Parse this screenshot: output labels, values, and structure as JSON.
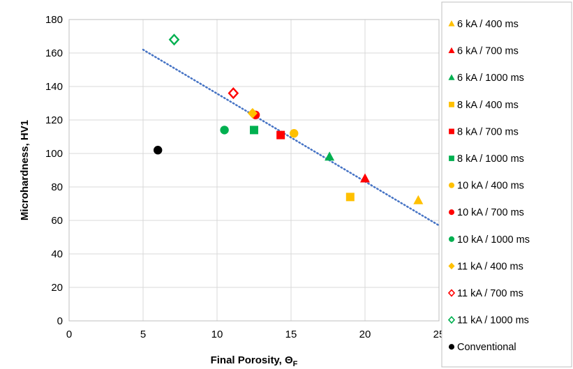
{
  "chart_data": {
    "type": "scatter",
    "title": "",
    "xlabel": "Final Porosity, Θ",
    "xlabel_sub": "F",
    "ylabel": "Microhardness, HV1",
    "xlim": [
      0,
      25
    ],
    "ylim": [
      0,
      180
    ],
    "x_ticks": [
      0,
      5,
      10,
      15,
      20,
      25
    ],
    "y_ticks": [
      0,
      20,
      40,
      60,
      80,
      100,
      120,
      140,
      160,
      180
    ],
    "grid": "vertical and horizontal major gridlines",
    "legend_placement": "right",
    "colors": {
      "yellow": "#FFC000",
      "red": "#FF0000",
      "green": "#00B050",
      "black": "#000000",
      "trend": "#4472C4"
    },
    "series": [
      {
        "name": "6 kA / 400 ms",
        "marker": "triangle",
        "color": "#FFC000",
        "points": [
          [
            23.6,
            72
          ]
        ]
      },
      {
        "name": "6 kA / 700 ms",
        "marker": "triangle",
        "color": "#FF0000",
        "points": [
          [
            20.0,
            85
          ]
        ]
      },
      {
        "name": "6 kA / 1000 ms",
        "marker": "triangle",
        "color": "#00B050",
        "points": [
          [
            17.6,
            98
          ]
        ]
      },
      {
        "name": "8 kA / 400 ms",
        "marker": "square",
        "color": "#FFC000",
        "points": [
          [
            19.0,
            74
          ]
        ]
      },
      {
        "name": "8 kA / 700 ms",
        "marker": "square",
        "color": "#FF0000",
        "points": [
          [
            14.3,
            111
          ]
        ]
      },
      {
        "name": "8 kA / 1000 ms",
        "marker": "square",
        "color": "#00B050",
        "points": [
          [
            12.5,
            114
          ]
        ]
      },
      {
        "name": "10 kA / 400 ms",
        "marker": "circle",
        "color": "#FFC000",
        "points": [
          [
            15.2,
            112
          ]
        ]
      },
      {
        "name": "10 kA / 700 ms",
        "marker": "circle",
        "color": "#FF0000",
        "points": [
          [
            12.6,
            123
          ]
        ]
      },
      {
        "name": "10 kA / 1000 ms",
        "marker": "circle",
        "color": "#00B050",
        "points": [
          [
            10.5,
            114
          ]
        ]
      },
      {
        "name": "11 kA / 400 ms",
        "marker": "diamond",
        "color": "#FFC000",
        "points": [
          [
            12.4,
            124
          ]
        ]
      },
      {
        "name": "11 kA / 700 ms",
        "marker": "diamond-open",
        "color": "#FF0000",
        "points": [
          [
            11.1,
            136
          ]
        ]
      },
      {
        "name": "11 kA / 1000 ms",
        "marker": "diamond-open",
        "color": "#00B050",
        "points": [
          [
            7.1,
            168
          ]
        ]
      },
      {
        "name": "Conventional",
        "marker": "circle",
        "color": "#000000",
        "points": [
          [
            6.0,
            102
          ]
        ]
      }
    ],
    "trendline": {
      "style": "dotted",
      "color": "#4472C4",
      "points": [
        [
          5,
          162
        ],
        [
          25,
          57
        ]
      ]
    }
  }
}
